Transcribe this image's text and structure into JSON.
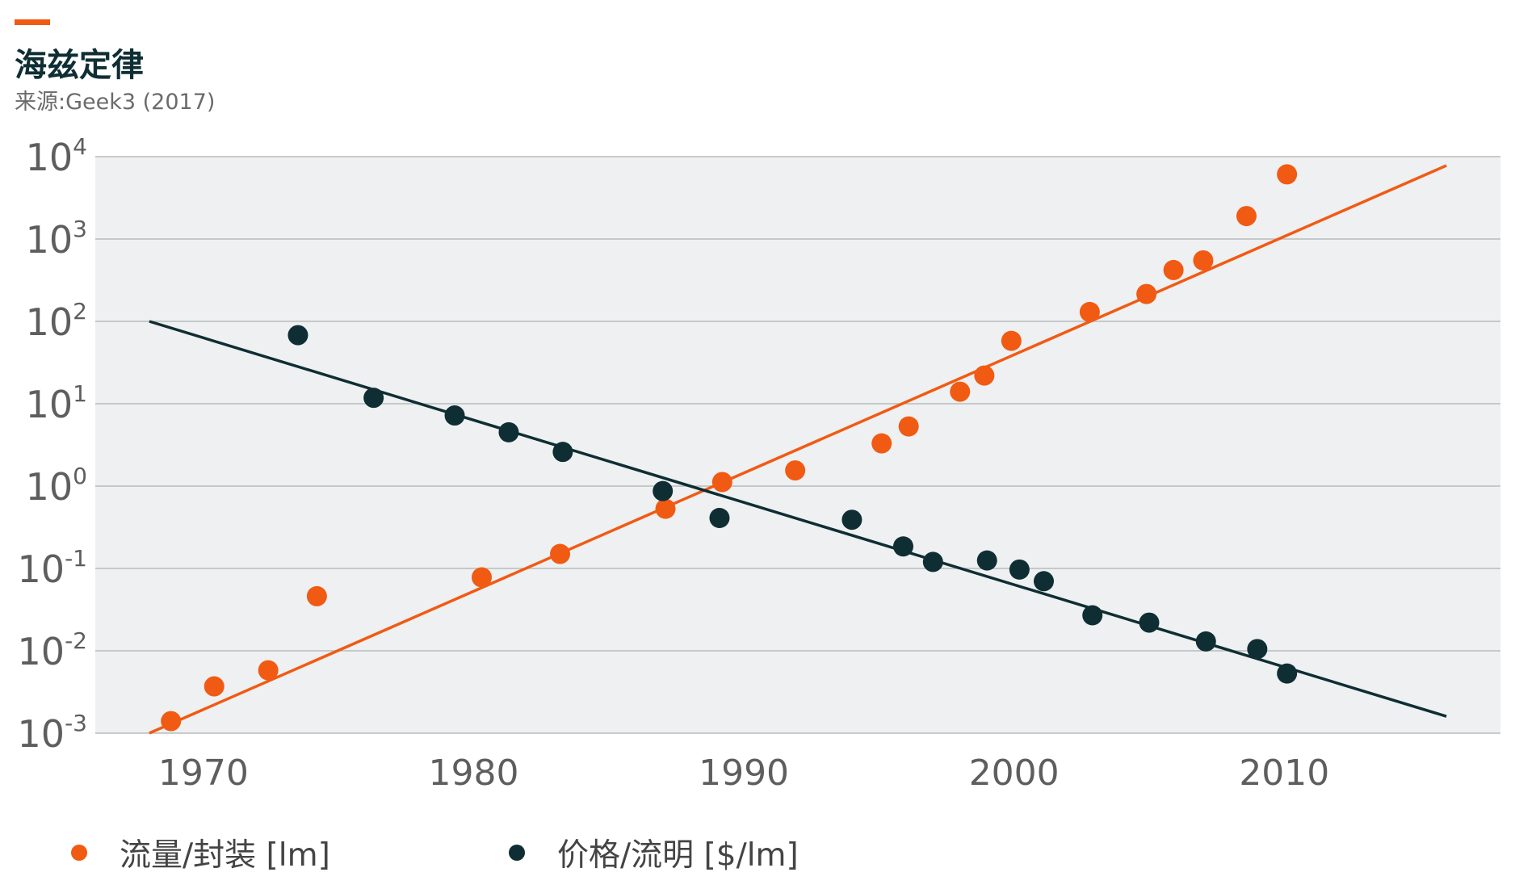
{
  "title": "海兹定律",
  "source": "来源:Geek3 (2017)",
  "colors": {
    "accent": "#f15a13",
    "flux": "#f15a13",
    "price": "#0f2e33",
    "plot_bg": "#eef0f1",
    "grid": "#b9bcbe"
  },
  "chart_data": {
    "type": "scatter",
    "title": "海兹定律",
    "subtitle": "来源:Geek3 (2017)",
    "y_scale": "log",
    "xlim": [
      1966,
      2018
    ],
    "ylim": [
      0.001,
      10000
    ],
    "x_ticks": [
      1970,
      1980,
      1990,
      2000,
      2010
    ],
    "x_tick_labels": [
      "1970",
      "1980",
      "1990",
      "2000",
      "2010"
    ],
    "y_ticks": [
      {
        "base": "10",
        "exp": "4",
        "value": 10000
      },
      {
        "base": "10",
        "exp": "3",
        "value": 1000
      },
      {
        "base": "10",
        "exp": "2",
        "value": 100
      },
      {
        "base": "10",
        "exp": "1",
        "value": 10
      },
      {
        "base": "10",
        "exp": "0",
        "value": 1
      },
      {
        "base": "10",
        "exp": "-1",
        "value": 0.1
      },
      {
        "base": "10",
        "exp": "-2",
        "value": 0.01
      },
      {
        "base": "10",
        "exp": "-3",
        "value": 0.001
      }
    ],
    "grid": true,
    "legend_position": "bottom-left",
    "series": [
      {
        "name": "流量/封装 [lm]",
        "color": "#f15a13",
        "points": [
          [
            1968.8,
            0.0014
          ],
          [
            1970.4,
            0.0037
          ],
          [
            1972.4,
            0.0058
          ],
          [
            1974.2,
            0.046
          ],
          [
            1980.3,
            0.078
          ],
          [
            1983.2,
            0.15
          ],
          [
            1987.1,
            0.53
          ],
          [
            1989.2,
            1.12
          ],
          [
            1991.9,
            1.55
          ],
          [
            1995.1,
            3.3
          ],
          [
            1996.1,
            5.3
          ],
          [
            1998.0,
            14
          ],
          [
            1998.9,
            22
          ],
          [
            1999.9,
            58
          ],
          [
            2002.8,
            130
          ],
          [
            2004.9,
            215
          ],
          [
            2005.9,
            420
          ],
          [
            2007.0,
            550
          ],
          [
            2008.6,
            1900
          ],
          [
            2010.1,
            6100
          ]
        ],
        "trend": [
          [
            1968.0,
            0.001
          ],
          [
            2016.0,
            7800
          ]
        ]
      },
      {
        "name": "价格/流明 [$/lm]",
        "color": "#0f2e33",
        "points": [
          [
            1973.5,
            68
          ],
          [
            1976.3,
            11.8
          ],
          [
            1979.3,
            7.2
          ],
          [
            1981.3,
            4.5
          ],
          [
            1983.3,
            2.6
          ],
          [
            1987.0,
            0.87
          ],
          [
            1989.1,
            0.41
          ],
          [
            1994.0,
            0.39
          ],
          [
            1995.9,
            0.185
          ],
          [
            1997.0,
            0.12
          ],
          [
            1999.0,
            0.125
          ],
          [
            2000.2,
            0.097
          ],
          [
            2001.1,
            0.07
          ],
          [
            2002.9,
            0.027
          ],
          [
            2005.0,
            0.022
          ],
          [
            2007.1,
            0.013
          ],
          [
            2009.0,
            0.0105
          ],
          [
            2010.1,
            0.0053
          ]
        ],
        "trend": [
          [
            1968.0,
            100
          ],
          [
            2016.0,
            0.0016
          ]
        ]
      }
    ]
  }
}
